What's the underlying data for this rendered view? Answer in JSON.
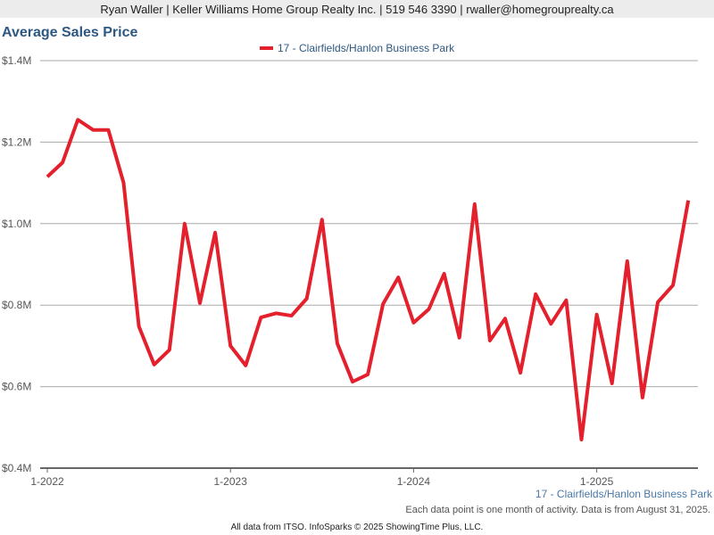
{
  "header": "Ryan Waller | Keller Williams Home Group Realty Inc. | 519 546 3390 | rwaller@homegrouprealty.ca",
  "chart_data": {
    "type": "line",
    "title": "Average Sales Price",
    "categories": [
      "1-2022",
      null,
      null,
      null,
      null,
      null,
      null,
      null,
      null,
      null,
      null,
      null,
      "1-2023",
      null,
      null,
      null,
      null,
      null,
      null,
      null,
      null,
      null,
      null,
      null,
      "1-2024",
      null,
      null,
      null,
      null,
      null,
      null,
      null,
      null,
      null,
      null,
      null,
      "1-2025",
      null,
      null,
      null,
      null,
      null,
      null
    ],
    "series": [
      {
        "name": "17 - Clairfields/Hanlon Business Park",
        "color": "#e3202c",
        "values": [
          1115000,
          1150000,
          1255000,
          1230000,
          1230000,
          1100000,
          748000,
          654000,
          690000,
          1000000,
          805000,
          978000,
          700000,
          652000,
          770000,
          780000,
          774000,
          816000,
          1010000,
          706000,
          612000,
          630000,
          803000,
          868000,
          757000,
          790000,
          877000,
          720000,
          1048000,
          713000,
          767000,
          634000,
          827000,
          754000,
          812000,
          470000,
          777000,
          608000,
          908000,
          573000,
          807000,
          849000,
          1057000
        ]
      }
    ],
    "ylim": [
      400000,
      1400000
    ],
    "yticks": [
      {
        "value": 400000,
        "label": "$0.4M"
      },
      {
        "value": 600000,
        "label": "$0.6M"
      },
      {
        "value": 800000,
        "label": "$0.8M"
      },
      {
        "value": 1000000,
        "label": "$1.0M"
      },
      {
        "value": 1200000,
        "label": "$1.2M"
      },
      {
        "value": 1400000,
        "label": "$1.4M"
      }
    ],
    "grid": true,
    "legend": "top",
    "note": "Each data point is one month of activity. Data is from August 31, 2025.",
    "credit": "All data from ITSO. InfoSparks © 2025 ShowingTime Plus, LLC."
  }
}
